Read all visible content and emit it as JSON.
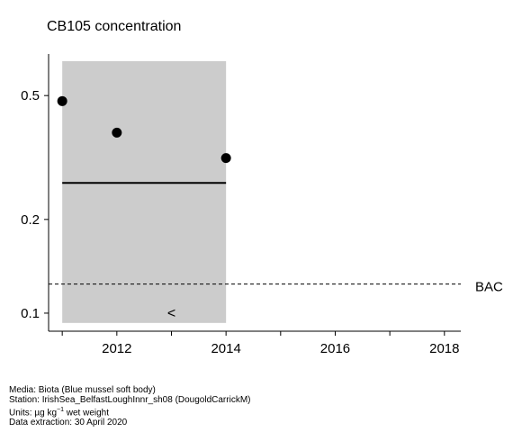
{
  "chart_data": {
    "type": "scatter",
    "title": "CB105 concentration",
    "xlabel": "",
    "ylabel": "",
    "y_scale": "log",
    "xlim": [
      2010.75,
      2018.3
    ],
    "ylim": [
      0.0875,
      0.68
    ],
    "x_ticks": [
      2011,
      2012,
      2013,
      2014,
      2015,
      2016,
      2017,
      2018
    ],
    "x_tick_labels": [
      "2012",
      "2014",
      "2016",
      "2018"
    ],
    "x_tick_label_values": [
      2012,
      2014,
      2016,
      2018
    ],
    "y_ticks": [
      0.1,
      0.2,
      0.5
    ],
    "y_tick_labels": [
      "0.1",
      "0.2",
      "0.5"
    ],
    "points": {
      "x": [
        2011,
        2012,
        2014
      ],
      "y": [
        0.48,
        0.38,
        0.315
      ]
    },
    "less_than_markers": [
      {
        "x": 2013,
        "y": 0.1,
        "label": "<"
      }
    ],
    "shaded_region": {
      "x": [
        2011,
        2014
      ],
      "y": [
        0.093,
        0.645
      ],
      "color": "#cccccc"
    },
    "trend_line": {
      "x": [
        2011,
        2014
      ],
      "y": [
        0.262,
        0.262
      ]
    },
    "reference_lines": [
      {
        "name": "BAC",
        "y": 0.124,
        "style": "dashed"
      }
    ],
    "grid": false
  },
  "footer": {
    "media": "Media: Biota (Blue mussel soft body)",
    "station": "Station: IrishSea_BelfastLoughInnr_sh08 (DougoldCarrickM)",
    "units_prefix": "Units: ",
    "units_unit": "µg kg",
    "units_exp": "−1",
    "units_suffix": " wet weight",
    "extraction": "Data extraction: 30 April 2020"
  }
}
